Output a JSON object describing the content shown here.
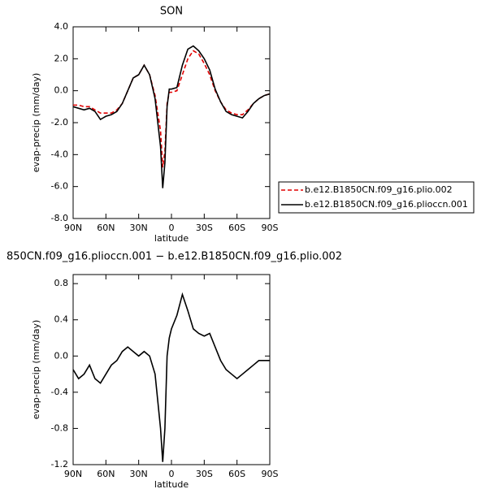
{
  "chart_data": [
    {
      "type": "line",
      "title": "SON",
      "xlabel": "latitude",
      "ylabel": "evap-precip (mm/day)",
      "x": [
        90,
        85,
        80,
        75,
        70,
        65,
        60,
        55,
        50,
        45,
        40,
        35,
        30,
        25,
        20,
        15,
        10,
        8,
        6,
        4,
        2,
        0,
        -5,
        -10,
        -15,
        -20,
        -25,
        -30,
        -35,
        -40,
        -45,
        -50,
        -55,
        -60,
        -65,
        -70,
        -75,
        -80,
        -85,
        -90
      ],
      "xlim": [
        90,
        -90
      ],
      "xticks": [
        {
          "value": 90,
          "label": "90N"
        },
        {
          "value": 60,
          "label": "60N"
        },
        {
          "value": 30,
          "label": "30N"
        },
        {
          "value": 0,
          "label": "0"
        },
        {
          "value": -30,
          "label": "30S"
        },
        {
          "value": -60,
          "label": "60S"
        },
        {
          "value": -90,
          "label": "90S"
        }
      ],
      "ylim": [
        -8,
        4
      ],
      "yticks": [
        {
          "value": 4,
          "label": "4.0"
        },
        {
          "value": 2,
          "label": "2.0"
        },
        {
          "value": 0,
          "label": "0.0"
        },
        {
          "value": -2,
          "label": "-2.0"
        },
        {
          "value": -4,
          "label": "-4.0"
        },
        {
          "value": -6,
          "label": "-6.0"
        },
        {
          "value": -8,
          "label": "-8.0"
        }
      ],
      "legend": "right",
      "series": [
        {
          "name": "b.e12.B1850CN.f09_g16.plio.002",
          "color": "#e00000",
          "style": "dashed",
          "values": [
            -0.9,
            -0.9,
            -1.0,
            -1.0,
            -1.2,
            -1.4,
            -1.4,
            -1.4,
            -1.2,
            -0.8,
            0.0,
            0.8,
            1.0,
            1.6,
            1.0,
            -0.3,
            -2.5,
            -4.8,
            -3.8,
            -0.8,
            -0.1,
            -0.1,
            0.0,
            1.0,
            2.0,
            2.5,
            2.3,
            1.7,
            1.0,
            0.0,
            -0.7,
            -1.2,
            -1.4,
            -1.5,
            -1.5,
            -1.2,
            -0.8,
            -0.5,
            -0.3,
            -0.2
          ]
        },
        {
          "name": "b.e12.B1850CN.f09_g16.plioccn.001",
          "color": "#000000",
          "style": "solid",
          "values": [
            -1.0,
            -1.1,
            -1.2,
            -1.1,
            -1.3,
            -1.8,
            -1.6,
            -1.5,
            -1.3,
            -0.8,
            0.0,
            0.8,
            1.0,
            1.6,
            1.0,
            -0.5,
            -3.5,
            -6.1,
            -4.5,
            -1.0,
            0.1,
            0.1,
            0.2,
            1.6,
            2.6,
            2.8,
            2.5,
            2.0,
            1.3,
            0.1,
            -0.7,
            -1.3,
            -1.5,
            -1.6,
            -1.7,
            -1.3,
            -0.8,
            -0.5,
            -0.3,
            -0.2
          ]
        }
      ]
    },
    {
      "type": "line",
      "title": "850CN.f09_g16.plioccn.001 − b.e12.B1850CN.f09_g16.plio.002",
      "xlabel": "latitude",
      "ylabel": "evap-precip (mm/day)",
      "x": [
        90,
        85,
        80,
        75,
        70,
        65,
        60,
        55,
        50,
        45,
        40,
        35,
        30,
        25,
        20,
        15,
        10,
        8,
        6,
        4,
        2,
        0,
        -5,
        -10,
        -15,
        -20,
        -25,
        -30,
        -35,
        -40,
        -45,
        -50,
        -55,
        -60,
        -65,
        -70,
        -75,
        -80,
        -85,
        -90
      ],
      "xlim": [
        90,
        -90
      ],
      "xticks": [
        {
          "value": 90,
          "label": "90N"
        },
        {
          "value": 60,
          "label": "60N"
        },
        {
          "value": 30,
          "label": "30N"
        },
        {
          "value": 0,
          "label": "0"
        },
        {
          "value": -30,
          "label": "30S"
        },
        {
          "value": -60,
          "label": "60S"
        },
        {
          "value": -90,
          "label": "90S"
        }
      ],
      "ylim": [
        -1.2,
        0.9
      ],
      "yticks": [
        0.8,
        0.4,
        {
          "value": 0,
          "label": "0.0"
        },
        -0.4,
        -0.8,
        -1.2
      ],
      "series": [
        {
          "color": "#000000",
          "style": "solid",
          "values": [
            -0.15,
            -0.25,
            -0.2,
            -0.1,
            -0.25,
            -0.3,
            -0.2,
            -0.1,
            -0.05,
            0.05,
            0.1,
            0.05,
            0.0,
            0.05,
            0.0,
            -0.2,
            -0.8,
            -1.17,
            -0.8,
            0.0,
            0.2,
            0.3,
            0.45,
            0.68,
            0.5,
            0.3,
            0.25,
            0.22,
            0.25,
            0.1,
            -0.05,
            -0.15,
            -0.2,
            -0.25,
            -0.2,
            -0.15,
            -0.1,
            -0.05,
            -0.05,
            -0.05
          ]
        }
      ]
    }
  ]
}
